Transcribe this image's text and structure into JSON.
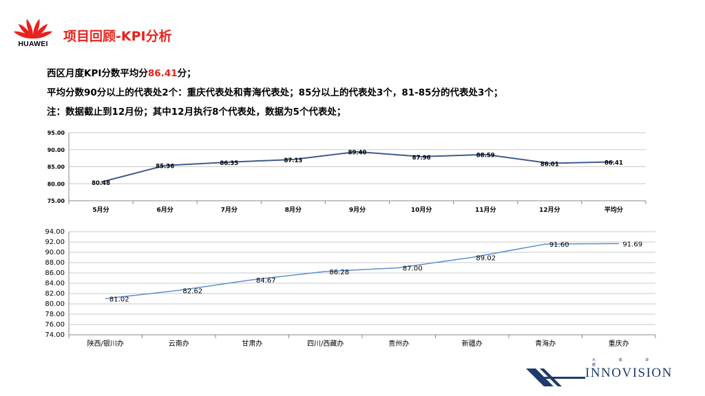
{
  "logo": {
    "text": "HUAWEI",
    "petal_color": "#e8221c"
  },
  "page": {
    "title": "项目回顾-KPI分析"
  },
  "summary": {
    "line1_prefix": "西区月度KPI分数平均分",
    "line1_highlight": "86.41",
    "line1_suffix": "分；",
    "line2": "平均分数90分以上的代表处2个：重庆代表处和青海代表处；85分以上的代表处3个，81-85分的代表处3个；",
    "line3": "注：数据截止到12月份；其中12月执行8个代表处，数据为5个代表处；"
  },
  "brand": {
    "name": "INNOVISION",
    "sub": "大 成 卓 越"
  },
  "chart_data": [
    {
      "type": "line",
      "categories": [
        "5月分",
        "6月分",
        "7月分",
        "8月分",
        "9月分",
        "10月分",
        "11月分",
        "12月分",
        "平均分"
      ],
      "values": [
        80.48,
        85.36,
        86.35,
        87.13,
        89.4,
        87.96,
        88.59,
        86.01,
        86.41
      ],
      "value_labels": [
        "80.48",
        "85.36",
        "86.35",
        "87.13",
        "89.40",
        "87.96",
        "88.59",
        "86.01",
        "86.41"
      ],
      "y_ticks": [
        "95.00",
        "90.00",
        "85.00",
        "80.00",
        "75.00"
      ],
      "ylim": [
        75,
        95
      ],
      "grid": true,
      "line_color": "#3d5a8f"
    },
    {
      "type": "line",
      "categories": [
        "陕西/银川办",
        "云南办",
        "甘肃办",
        "四川/西藏办",
        "贵州办",
        "新疆办",
        "青海办",
        "重庆办"
      ],
      "values": [
        81.02,
        82.62,
        84.67,
        86.28,
        87.0,
        89.02,
        91.6,
        91.69
      ],
      "value_labels": [
        "81.02",
        "82.62",
        "84.67",
        "86.28",
        "87.00",
        "89.02",
        "91.60",
        "91.69"
      ],
      "y_ticks": [
        "94.00",
        "92.00",
        "90.00",
        "88.00",
        "86.00",
        "84.00",
        "82.00",
        "80.00",
        "78.00",
        "76.00",
        "74.00"
      ],
      "ylim": [
        74,
        94
      ],
      "grid": true,
      "line_color": "#5a8fcf"
    }
  ]
}
